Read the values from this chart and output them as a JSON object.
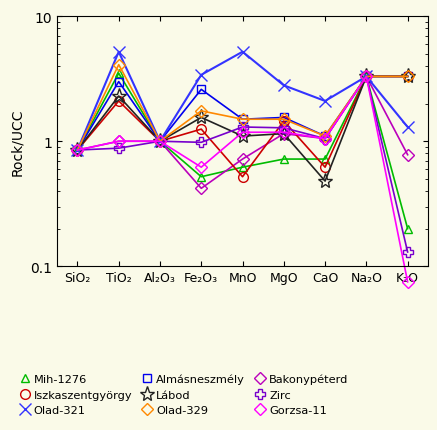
{
  "x_labels": [
    "SiO₂",
    "TiO₂",
    "Al₂O₃",
    "Fe₂O₃",
    "MnO",
    "MgO",
    "CaO",
    "Na₂O",
    "K₂O"
  ],
  "background_color": "#FAFAE8",
  "ylabel": "Rock/UCC",
  "ylim": [
    0.1,
    10
  ],
  "series": [
    {
      "name": "Mih-1276",
      "color": "#00BB00",
      "marker": "^",
      "markersize": 6,
      "markerfacecolor": "none",
      "lw": 1.2,
      "values": [
        0.85,
        3.5,
        1.0,
        0.52,
        0.62,
        0.72,
        0.72,
        3.3,
        0.2
      ]
    },
    {
      "name": "Almásneszmély",
      "color": "#0000EE",
      "marker": "s",
      "markersize": 6,
      "markerfacecolor": "none",
      "lw": 1.2,
      "values": [
        0.85,
        3.0,
        1.0,
        2.6,
        1.5,
        1.55,
        1.1,
        3.3,
        3.3
      ]
    },
    {
      "name": "Bakonypéterd",
      "color": "#BB00BB",
      "marker": "D",
      "markersize": 6,
      "markerfacecolor": "none",
      "lw": 1.2,
      "values": [
        0.85,
        1.0,
        1.0,
        0.42,
        0.72,
        1.15,
        1.05,
        3.3,
        0.78
      ]
    },
    {
      "name": "Iszkaszentgyörgy",
      "color": "#CC0000",
      "marker": "o",
      "markersize": 7,
      "markerfacecolor": "none",
      "lw": 1.2,
      "values": [
        0.85,
        2.1,
        1.0,
        1.25,
        0.52,
        1.45,
        0.62,
        3.3,
        3.3
      ]
    },
    {
      "name": "Lábod",
      "color": "#222222",
      "marker": "*",
      "markersize": 11,
      "markerfacecolor": "none",
      "lw": 1.2,
      "values": [
        0.85,
        2.3,
        1.0,
        1.55,
        1.1,
        1.15,
        0.48,
        3.3,
        3.3
      ]
    },
    {
      "name": "Zirc",
      "color": "#7700CC",
      "marker": "P",
      "markersize": 7,
      "markerfacecolor": "none",
      "lw": 1.2,
      "values": [
        0.85,
        0.88,
        1.0,
        0.98,
        1.3,
        1.28,
        1.05,
        3.3,
        0.13
      ]
    },
    {
      "name": "Olad-321",
      "color": "#3333FF",
      "marker": "x",
      "markersize": 9,
      "markerfacecolor": "#3333FF",
      "lw": 1.5,
      "values": [
        0.85,
        5.2,
        1.0,
        3.4,
        5.2,
        2.8,
        2.1,
        3.3,
        1.3
      ]
    },
    {
      "name": "Olad-329",
      "color": "#FF8800",
      "marker": "D",
      "markersize": 6,
      "markerfacecolor": "none",
      "lw": 1.2,
      "values": [
        0.85,
        4.1,
        1.0,
        1.75,
        1.5,
        1.5,
        1.1,
        3.3,
        3.3
      ]
    },
    {
      "name": "Gorzsa-11",
      "color": "#FF00FF",
      "marker": "D",
      "markersize": 6,
      "markerfacecolor": "none",
      "lw": 1.2,
      "values": [
        0.85,
        1.0,
        1.0,
        0.62,
        1.18,
        1.18,
        1.05,
        3.3,
        0.075
      ]
    }
  ],
  "legend_order": [
    "Mih-1276",
    "Iszkaszentgyörgy",
    "Olad-321",
    "Almásneszmély",
    "Lábod",
    "Olad-329",
    "Bakonypéterd",
    "Zirc",
    "Gorzsa-11"
  ]
}
